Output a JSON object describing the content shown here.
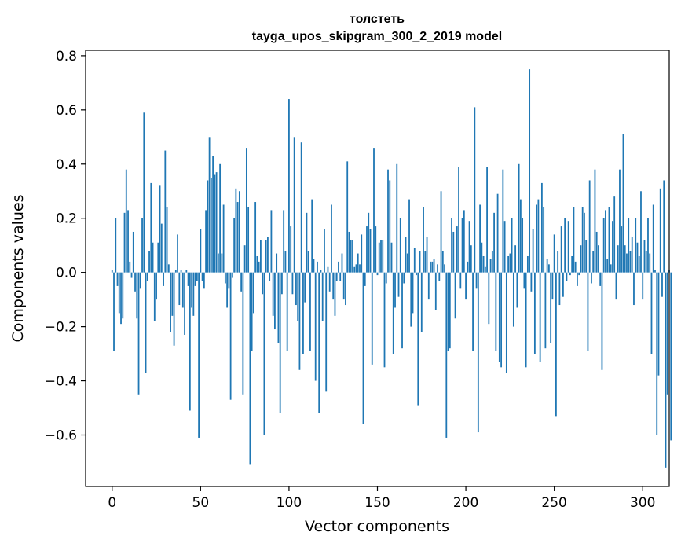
{
  "chart_data": {
    "type": "bar",
    "title_line1": "толстеть",
    "title_line2": "tayga_upos_skipgram_300_2_2019 model",
    "xlabel": "Vector components",
    "ylabel": "Components values",
    "xlim": [
      -15,
      315
    ],
    "ylim": [
      -0.79,
      0.82
    ],
    "xticks": [
      0,
      50,
      100,
      150,
      200,
      250,
      300
    ],
    "xtick_labels": [
      "0",
      "50",
      "100",
      "150",
      "200",
      "250",
      "300"
    ],
    "yticks": [
      -0.6,
      -0.4,
      -0.2,
      0.0,
      0.2,
      0.4,
      0.6,
      0.8
    ],
    "ytick_labels": [
      "−0.6",
      "−0.4",
      "−0.2",
      "0.0",
      "0.2",
      "0.4",
      "0.6",
      "0.8"
    ],
    "bar_color": "#1f77b4",
    "values": [
      0.01,
      -0.29,
      0.2,
      -0.05,
      -0.15,
      -0.19,
      -0.17,
      0.22,
      0.38,
      0.23,
      0.04,
      -0.02,
      0.15,
      -0.07,
      -0.17,
      -0.45,
      -0.06,
      0.2,
      0.59,
      -0.37,
      -0.03,
      0.08,
      0.33,
      0.11,
      -0.18,
      -0.1,
      0.11,
      0.32,
      0.18,
      -0.05,
      0.45,
      0.24,
      0.03,
      -0.22,
      -0.16,
      -0.27,
      0.01,
      0.14,
      -0.12,
      0.01,
      -0.13,
      -0.23,
      0.01,
      -0.05,
      -0.51,
      -0.13,
      -0.16,
      -0.05,
      -0.03,
      -0.61,
      0.16,
      -0.03,
      -0.06,
      0.23,
      0.34,
      0.5,
      0.35,
      0.43,
      0.36,
      0.37,
      0.07,
      0.4,
      0.07,
      0.25,
      -0.04,
      -0.13,
      -0.06,
      -0.47,
      -0.02,
      0.2,
      0.31,
      0.26,
      0.3,
      -0.07,
      -0.45,
      0.1,
      0.46,
      0.24,
      -0.71,
      -0.29,
      -0.15,
      0.26,
      0.06,
      0.04,
      0.12,
      -0.08,
      -0.6,
      0.12,
      0.13,
      -0.03,
      0.23,
      -0.16,
      -0.21,
      0.07,
      -0.26,
      -0.52,
      -0.08,
      0.23,
      0.08,
      -0.29,
      0.64,
      0.17,
      -0.08,
      0.5,
      -0.12,
      -0.18,
      -0.36,
      0.48,
      -0.3,
      -0.11,
      0.22,
      0.08,
      -0.29,
      0.27,
      0.05,
      -0.4,
      0.04,
      -0.52,
      0.01,
      -0.18,
      0.16,
      -0.44,
      0.02,
      -0.07,
      0.25,
      -0.1,
      -0.16,
      -0.03,
      0.04,
      -0.03,
      0.07,
      -0.1,
      -0.12,
      0.41,
      0.15,
      0.12,
      0.12,
      0.02,
      0.03,
      0.07,
      0.03,
      0.14,
      -0.56,
      -0.05,
      0.17,
      0.22,
      0.16,
      -0.34,
      0.46,
      0.17,
      -0.01,
      0.11,
      0.12,
      0.12,
      -0.35,
      -0.04,
      0.38,
      0.34,
      0.11,
      -0.3,
      -0.13,
      0.4,
      -0.09,
      0.2,
      -0.28,
      -0.04,
      0.13,
      0.07,
      0.27,
      -0.2,
      -0.15,
      0.09,
      -0.01,
      -0.49,
      0.08,
      -0.22,
      0.24,
      0.08,
      0.13,
      -0.1,
      0.04,
      0.04,
      0.05,
      -0.14,
      0.03,
      -0.03,
      0.3,
      0.08,
      0.03,
      -0.61,
      -0.29,
      -0.28,
      0.2,
      0.15,
      -0.17,
      0.17,
      0.39,
      -0.06,
      0.2,
      0.23,
      -0.1,
      0.04,
      0.19,
      0.1,
      -0.29,
      0.61,
      -0.06,
      -0.59,
      0.25,
      0.11,
      0.06,
      0.02,
      0.39,
      -0.19,
      0.05,
      0.08,
      0.22,
      -0.29,
      0.29,
      -0.33,
      -0.35,
      0.38,
      0.19,
      -0.37,
      0.06,
      0.07,
      0.2,
      -0.2,
      0.1,
      -0.13,
      0.4,
      0.27,
      0.2,
      -0.06,
      -0.35,
      0.06,
      0.75,
      -0.07,
      0.16,
      -0.3,
      0.25,
      0.27,
      -0.33,
      0.33,
      0.24,
      -0.28,
      0.05,
      0.03,
      -0.26,
      -0.1,
      0.14,
      -0.53,
      0.08,
      -0.12,
      0.17,
      -0.09,
      0.2,
      -0.03,
      0.19,
      -0.01,
      0.06,
      0.24,
      0.04,
      -0.05,
      -0.01,
      0.1,
      0.24,
      0.22,
      0.12,
      -0.29,
      0.34,
      -0.04,
      0.08,
      0.38,
      0.15,
      0.1,
      -0.05,
      -0.36,
      0.2,
      0.23,
      0.05,
      0.24,
      0.03,
      0.19,
      0.28,
      -0.1,
      0.1,
      0.38,
      0.17,
      0.51,
      0.1,
      0.07,
      0.2,
      0.08,
      0.13,
      -0.12,
      0.2,
      0.11,
      0.06,
      0.3,
      -0.1,
      0.12,
      0.08,
      0.2,
      0.07,
      -0.3,
      0.25,
      0.01,
      -0.6,
      -0.38,
      0.31,
      -0.09,
      0.34,
      -0.72,
      -0.45,
      0.01,
      -0.62
    ]
  }
}
